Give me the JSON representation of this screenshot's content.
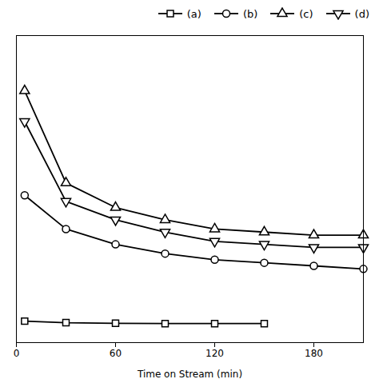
{
  "chart_data": {
    "type": "line",
    "xlabel": "Time on Stream (min)",
    "xlim": [
      0,
      210
    ],
    "xticks": [
      0,
      60,
      120,
      180
    ],
    "ylim": [
      0,
      1.0
    ],
    "tick_labels": "x",
    "grid": false,
    "legend": "upper right",
    "series": [
      {
        "name": "(a)",
        "color": "#000000",
        "marker": "square",
        "x": [
          5,
          30,
          60,
          90,
          120,
          150
        ],
        "values": [
          0.07,
          0.065,
          0.063,
          0.062,
          0.062,
          0.062
        ]
      },
      {
        "name": "(b)",
        "color": "#000000",
        "marker": "circle",
        "x": [
          5,
          30,
          60,
          90,
          120,
          150,
          180,
          210
        ],
        "values": [
          0.48,
          0.37,
          0.32,
          0.29,
          0.27,
          0.26,
          0.25,
          0.24
        ]
      },
      {
        "name": "(c)",
        "color": "#000000",
        "marker": "triangle-up",
        "x": [
          5,
          30,
          60,
          90,
          120,
          150,
          180,
          210
        ],
        "values": [
          0.82,
          0.52,
          0.44,
          0.4,
          0.37,
          0.36,
          0.35,
          0.35
        ]
      },
      {
        "name": "(d)",
        "color": "#000000",
        "marker": "triangle-down",
        "x": [
          5,
          30,
          60,
          90,
          120,
          150,
          180,
          210
        ],
        "values": [
          0.72,
          0.46,
          0.4,
          0.36,
          0.33,
          0.32,
          0.31,
          0.31
        ]
      }
    ]
  }
}
